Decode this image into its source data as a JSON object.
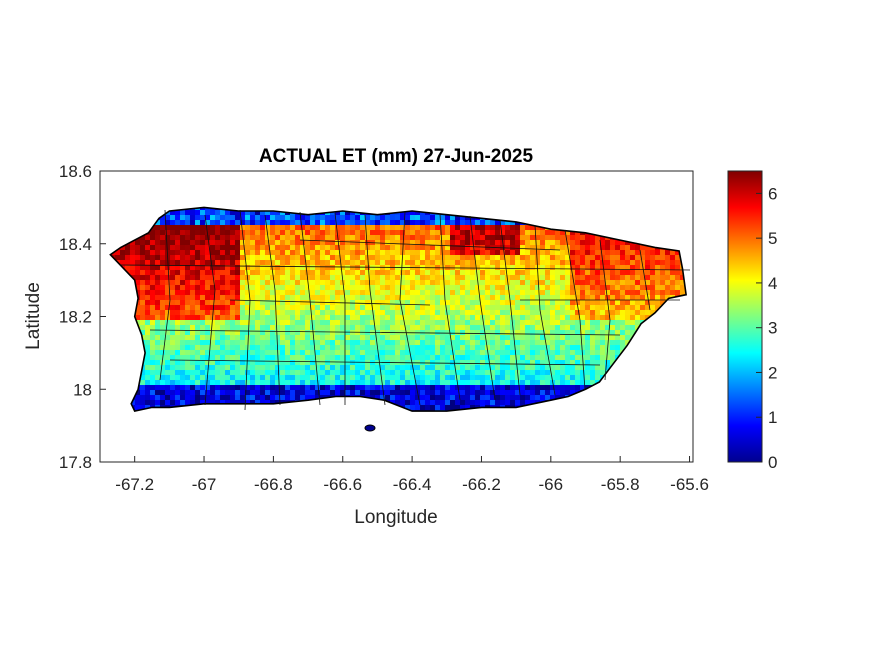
{
  "chart_data": {
    "type": "heatmap",
    "title": "ACTUAL ET (mm) 27-Jun-2025",
    "xlabel": "Longitude",
    "ylabel": "Latitude",
    "xlim": [
      -67.3,
      -65.59
    ],
    "ylim": [
      17.8,
      18.6
    ],
    "xticks": [
      {
        "value": -67.2,
        "label": "-67.2"
      },
      {
        "value": -67.0,
        "label": "-67"
      },
      {
        "value": -66.8,
        "label": "-66.8"
      },
      {
        "value": -66.6,
        "label": "-66.6"
      },
      {
        "value": -66.4,
        "label": "-66.4"
      },
      {
        "value": -66.2,
        "label": "-66.2"
      },
      {
        "value": -66.0,
        "label": "-66"
      },
      {
        "value": -65.8,
        "label": "-65.8"
      },
      {
        "value": -65.6,
        "label": "-65.6"
      }
    ],
    "yticks": [
      {
        "value": 17.8,
        "label": "17.8"
      },
      {
        "value": 18.0,
        "label": "18"
      },
      {
        "value": 18.2,
        "label": "18.2"
      },
      {
        "value": 18.4,
        "label": "18.4"
      },
      {
        "value": 18.6,
        "label": "18.6"
      }
    ],
    "colorbar": {
      "colormap": "jet",
      "range": [
        0,
        6.5
      ],
      "ticks": [
        {
          "value": 0,
          "label": "0"
        },
        {
          "value": 1,
          "label": "1"
        },
        {
          "value": 2,
          "label": "2"
        },
        {
          "value": 3,
          "label": "3"
        },
        {
          "value": 4,
          "label": "4"
        },
        {
          "value": 5,
          "label": "5"
        },
        {
          "value": 6,
          "label": "6"
        }
      ]
    },
    "region": "Puerto Rico",
    "outline": [
      [
        -67.27,
        18.37
      ],
      [
        -67.24,
        18.39
      ],
      [
        -67.2,
        18.41
      ],
      [
        -67.16,
        18.43
      ],
      [
        -67.13,
        18.47
      ],
      [
        -67.1,
        18.49
      ],
      [
        -67.0,
        18.5
      ],
      [
        -66.9,
        18.49
      ],
      [
        -66.8,
        18.49
      ],
      [
        -66.7,
        18.48
      ],
      [
        -66.6,
        18.49
      ],
      [
        -66.5,
        18.48
      ],
      [
        -66.4,
        18.49
      ],
      [
        -66.3,
        18.48
      ],
      [
        -66.2,
        18.47
      ],
      [
        -66.1,
        18.46
      ],
      [
        -66.0,
        18.44
      ],
      [
        -65.9,
        18.43
      ],
      [
        -65.8,
        18.41
      ],
      [
        -65.7,
        18.39
      ],
      [
        -65.63,
        18.38
      ],
      [
        -65.62,
        18.33
      ],
      [
        -65.61,
        18.26
      ],
      [
        -65.66,
        18.25
      ],
      [
        -65.7,
        18.21
      ],
      [
        -65.74,
        18.18
      ],
      [
        -65.78,
        18.12
      ],
      [
        -65.82,
        18.07
      ],
      [
        -65.86,
        18.02
      ],
      [
        -65.9,
        18.0
      ],
      [
        -65.95,
        17.98
      ],
      [
        -66.0,
        17.97
      ],
      [
        -66.1,
        17.95
      ],
      [
        -66.2,
        17.95
      ],
      [
        -66.3,
        17.94
      ],
      [
        -66.4,
        17.94
      ],
      [
        -66.48,
        17.97
      ],
      [
        -66.55,
        17.98
      ],
      [
        -66.62,
        17.98
      ],
      [
        -66.7,
        17.97
      ],
      [
        -66.8,
        17.96
      ],
      [
        -66.9,
        17.96
      ],
      [
        -67.0,
        17.96
      ],
      [
        -67.1,
        17.95
      ],
      [
        -67.15,
        17.95
      ],
      [
        -67.2,
        17.94
      ],
      [
        -67.21,
        17.96
      ],
      [
        -67.19,
        18.0
      ],
      [
        -67.18,
        18.05
      ],
      [
        -67.17,
        18.1
      ],
      [
        -67.18,
        18.15
      ],
      [
        -67.2,
        18.2
      ],
      [
        -67.19,
        18.25
      ],
      [
        -67.2,
        18.3
      ],
      [
        -67.24,
        18.34
      ]
    ],
    "grid": false,
    "legend": "none"
  }
}
